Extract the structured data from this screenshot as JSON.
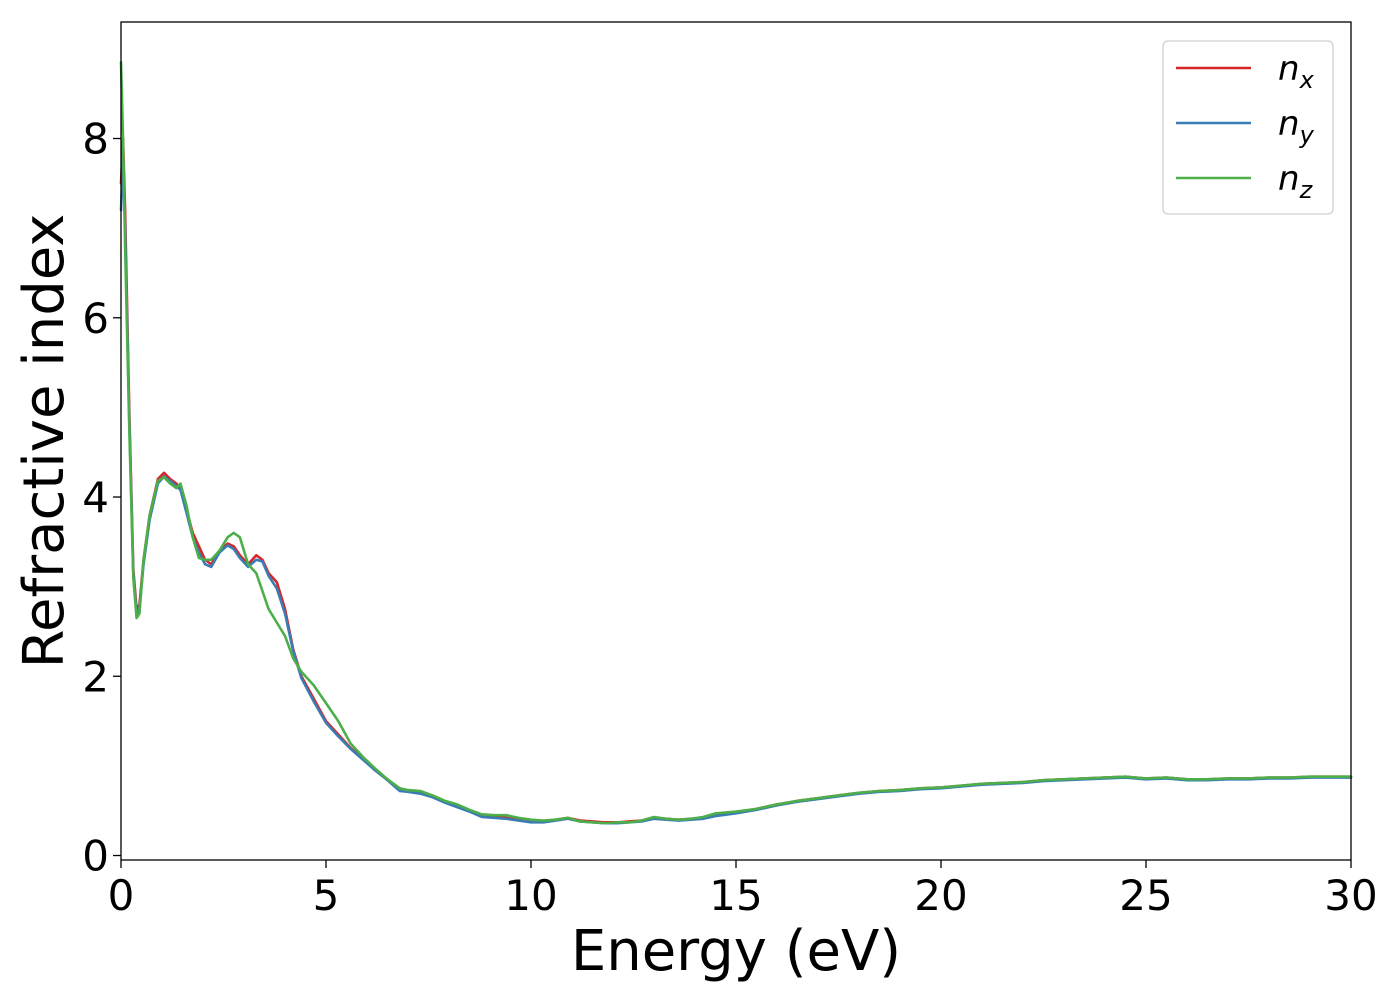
{
  "chart_data": {
    "type": "line",
    "title": "",
    "xlabel": "Energy (eV)",
    "ylabel": "Refractive index",
    "xlim": [
      0,
      30
    ],
    "ylim": [
      -0.05,
      9.3
    ],
    "xticks": [
      0,
      5,
      10,
      15,
      20,
      25,
      30
    ],
    "yticks": [
      0,
      2,
      4,
      6,
      8
    ],
    "grid": false,
    "legend_position": "top-right",
    "series": [
      {
        "name": "n_x",
        "legend_base": "n",
        "legend_sub": "x",
        "color": "#d62728",
        "x": [
          0.0,
          0.05,
          0.1,
          0.2,
          0.3,
          0.38,
          0.45,
          0.55,
          0.7,
          0.9,
          1.05,
          1.2,
          1.35,
          1.45,
          1.6,
          1.75,
          1.9,
          2.05,
          2.2,
          2.4,
          2.6,
          2.75,
          2.9,
          3.1,
          3.3,
          3.45,
          3.6,
          3.8,
          4.0,
          4.2,
          4.4,
          4.7,
          5.0,
          5.3,
          5.6,
          5.9,
          6.2,
          6.5,
          6.8,
          7.0,
          7.3,
          7.6,
          7.9,
          8.2,
          8.5,
          8.8,
          9.1,
          9.4,
          9.7,
          10.0,
          10.3,
          10.6,
          10.9,
          11.2,
          11.5,
          11.8,
          12.1,
          12.4,
          12.7,
          13.0,
          13.3,
          13.6,
          13.9,
          14.2,
          14.5,
          15.0,
          15.5,
          16.0,
          16.5,
          17.0,
          17.5,
          18.0,
          18.5,
          19.0,
          19.5,
          20.0,
          20.5,
          21.0,
          21.5,
          22.0,
          22.5,
          23.0,
          23.5,
          24.0,
          24.5,
          25.0,
          25.5,
          26.0,
          26.5,
          27.0,
          27.5,
          28.0,
          28.5,
          29.0,
          29.5,
          30.0
        ],
        "y": [
          7.5,
          8.0,
          7.2,
          5.0,
          3.2,
          2.75,
          2.8,
          3.3,
          3.8,
          4.2,
          4.27,
          4.2,
          4.15,
          4.1,
          3.85,
          3.6,
          3.45,
          3.3,
          3.25,
          3.4,
          3.48,
          3.45,
          3.35,
          3.25,
          3.35,
          3.3,
          3.15,
          3.05,
          2.75,
          2.3,
          2.0,
          1.75,
          1.5,
          1.35,
          1.2,
          1.08,
          0.95,
          0.85,
          0.73,
          0.72,
          0.7,
          0.66,
          0.6,
          0.55,
          0.5,
          0.44,
          0.43,
          0.42,
          0.4,
          0.38,
          0.38,
          0.4,
          0.42,
          0.39,
          0.38,
          0.37,
          0.37,
          0.38,
          0.39,
          0.42,
          0.41,
          0.4,
          0.41,
          0.42,
          0.45,
          0.48,
          0.52,
          0.57,
          0.61,
          0.64,
          0.67,
          0.7,
          0.72,
          0.73,
          0.75,
          0.76,
          0.78,
          0.8,
          0.81,
          0.82,
          0.84,
          0.85,
          0.86,
          0.87,
          0.88,
          0.86,
          0.87,
          0.85,
          0.85,
          0.86,
          0.86,
          0.87,
          0.87,
          0.88,
          0.88,
          0.88
        ]
      },
      {
        "name": "n_y",
        "legend_base": "n",
        "legend_sub": "y",
        "color": "#3a7db5",
        "x": [
          0.0,
          0.05,
          0.1,
          0.2,
          0.3,
          0.38,
          0.45,
          0.55,
          0.7,
          0.9,
          1.05,
          1.2,
          1.35,
          1.45,
          1.6,
          1.75,
          1.9,
          2.05,
          2.2,
          2.4,
          2.6,
          2.75,
          2.9,
          3.1,
          3.3,
          3.45,
          3.6,
          3.8,
          4.0,
          4.2,
          4.4,
          4.7,
          5.0,
          5.3,
          5.6,
          5.9,
          6.2,
          6.5,
          6.8,
          7.0,
          7.3,
          7.6,
          7.9,
          8.2,
          8.5,
          8.8,
          9.1,
          9.4,
          9.7,
          10.0,
          10.3,
          10.6,
          10.9,
          11.2,
          11.5,
          11.8,
          12.1,
          12.4,
          12.7,
          13.0,
          13.3,
          13.6,
          13.9,
          14.2,
          14.5,
          15.0,
          15.5,
          16.0,
          16.5,
          17.0,
          17.5,
          18.0,
          18.5,
          19.0,
          19.5,
          20.0,
          20.5,
          21.0,
          21.5,
          22.0,
          22.5,
          23.0,
          23.5,
          24.0,
          24.5,
          25.0,
          25.5,
          26.0,
          26.5,
          27.0,
          27.5,
          28.0,
          28.5,
          29.0,
          29.5,
          30.0
        ],
        "y": [
          7.2,
          7.8,
          7.0,
          4.9,
          3.15,
          2.7,
          2.75,
          3.25,
          3.75,
          4.15,
          4.23,
          4.18,
          4.12,
          4.08,
          3.82,
          3.55,
          3.38,
          3.25,
          3.22,
          3.38,
          3.46,
          3.42,
          3.32,
          3.22,
          3.3,
          3.28,
          3.12,
          2.98,
          2.7,
          2.28,
          1.98,
          1.72,
          1.48,
          1.33,
          1.19,
          1.07,
          0.95,
          0.84,
          0.72,
          0.71,
          0.69,
          0.65,
          0.59,
          0.54,
          0.49,
          0.43,
          0.42,
          0.41,
          0.39,
          0.37,
          0.37,
          0.39,
          0.41,
          0.38,
          0.37,
          0.36,
          0.36,
          0.37,
          0.38,
          0.41,
          0.4,
          0.39,
          0.4,
          0.41,
          0.44,
          0.47,
          0.51,
          0.56,
          0.6,
          0.63,
          0.66,
          0.69,
          0.71,
          0.72,
          0.74,
          0.75,
          0.77,
          0.79,
          0.8,
          0.81,
          0.83,
          0.84,
          0.85,
          0.86,
          0.87,
          0.85,
          0.86,
          0.84,
          0.84,
          0.85,
          0.85,
          0.86,
          0.86,
          0.87,
          0.87,
          0.87
        ]
      },
      {
        "name": "n_z",
        "legend_base": "n",
        "legend_sub": "z",
        "color": "#4daf4a",
        "x": [
          0.0,
          0.05,
          0.1,
          0.2,
          0.3,
          0.38,
          0.45,
          0.55,
          0.7,
          0.9,
          1.05,
          1.2,
          1.35,
          1.45,
          1.6,
          1.75,
          1.9,
          2.05,
          2.2,
          2.4,
          2.6,
          2.75,
          2.9,
          3.1,
          3.3,
          3.45,
          3.6,
          3.8,
          4.0,
          4.2,
          4.4,
          4.7,
          5.0,
          5.3,
          5.6,
          5.9,
          6.2,
          6.5,
          6.8,
          7.0,
          7.3,
          7.6,
          7.9,
          8.2,
          8.5,
          8.8,
          9.1,
          9.4,
          9.7,
          10.0,
          10.3,
          10.6,
          10.9,
          11.2,
          11.5,
          11.8,
          12.1,
          12.4,
          12.7,
          13.0,
          13.3,
          13.6,
          13.9,
          14.2,
          14.5,
          15.0,
          15.5,
          16.0,
          16.5,
          17.0,
          17.5,
          18.0,
          18.5,
          19.0,
          19.5,
          20.0,
          20.5,
          21.0,
          21.5,
          22.0,
          22.5,
          23.0,
          23.5,
          24.0,
          24.5,
          25.0,
          25.5,
          26.0,
          26.5,
          27.0,
          27.5,
          28.0,
          28.5,
          29.0,
          29.5,
          30.0
        ],
        "y": [
          8.85,
          8.0,
          6.8,
          4.8,
          3.1,
          2.65,
          2.7,
          3.3,
          3.8,
          4.18,
          4.22,
          4.15,
          4.1,
          4.15,
          3.9,
          3.55,
          3.32,
          3.3,
          3.3,
          3.4,
          3.55,
          3.6,
          3.55,
          3.25,
          3.15,
          2.95,
          2.75,
          2.6,
          2.45,
          2.2,
          2.05,
          1.9,
          1.7,
          1.5,
          1.25,
          1.1,
          0.97,
          0.85,
          0.75,
          0.73,
          0.72,
          0.67,
          0.61,
          0.57,
          0.51,
          0.46,
          0.45,
          0.45,
          0.42,
          0.4,
          0.39,
          0.4,
          0.42,
          0.38,
          0.37,
          0.36,
          0.37,
          0.37,
          0.39,
          0.43,
          0.41,
          0.4,
          0.41,
          0.43,
          0.47,
          0.49,
          0.52,
          0.57,
          0.61,
          0.64,
          0.67,
          0.7,
          0.72,
          0.73,
          0.75,
          0.76,
          0.78,
          0.8,
          0.81,
          0.82,
          0.84,
          0.85,
          0.86,
          0.87,
          0.88,
          0.86,
          0.87,
          0.85,
          0.85,
          0.86,
          0.86,
          0.87,
          0.87,
          0.88,
          0.88,
          0.88
        ]
      }
    ]
  }
}
